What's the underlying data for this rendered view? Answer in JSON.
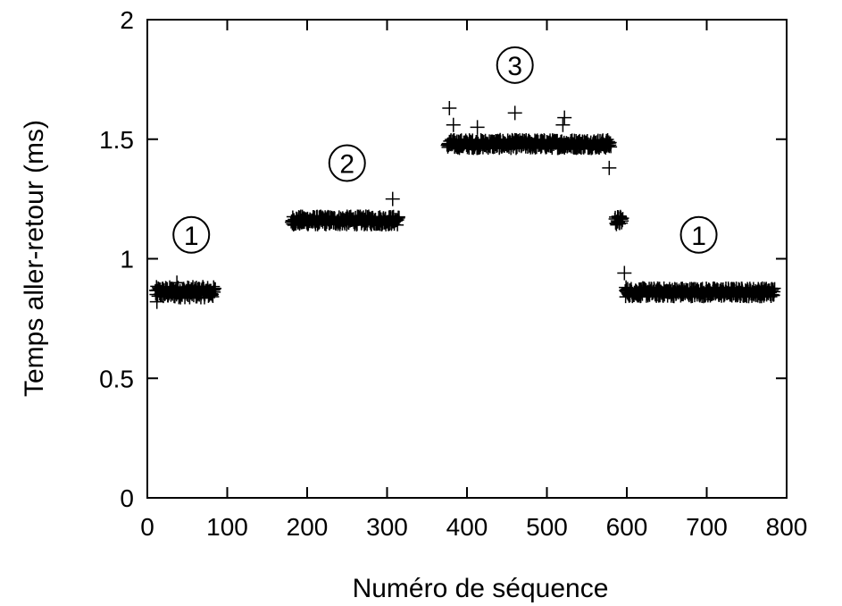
{
  "chart_data": {
    "type": "scatter",
    "title": "",
    "xlabel": "Numéro de séquence",
    "ylabel": "Temps aller-retour (ms)",
    "xlim": [
      0,
      800
    ],
    "ylim": [
      0,
      2
    ],
    "xticks": [
      0,
      100,
      200,
      300,
      400,
      500,
      600,
      700,
      800
    ],
    "yticks": [
      0,
      0.5,
      1,
      1.5,
      2
    ],
    "xtick_labels": [
      "0",
      "100",
      "200",
      "300",
      "400",
      "500",
      "600",
      "700",
      "800"
    ],
    "ytick_labels": [
      "0",
      "0.5",
      "1",
      "1.5",
      "2"
    ],
    "grid": false,
    "legend": "none",
    "marker": "plus",
    "color": "#000000",
    "segments": [
      {
        "x_start": 10,
        "x_end": 85,
        "y_base": 0.86,
        "y_spread": 0.025
      },
      {
        "x_start": 180,
        "x_end": 315,
        "y_base": 1.16,
        "y_spread": 0.02
      },
      {
        "x_start": 375,
        "x_end": 580,
        "y_base": 1.48,
        "y_spread": 0.02
      },
      {
        "x_start": 585,
        "x_end": 595,
        "y_base": 1.16,
        "y_spread": 0.02
      },
      {
        "x_start": 598,
        "x_end": 785,
        "y_base": 0.86,
        "y_spread": 0.02
      }
    ],
    "outliers": [
      {
        "x": 12,
        "y": 0.82
      },
      {
        "x": 37,
        "y": 0.9
      },
      {
        "x": 307,
        "y": 1.25
      },
      {
        "x": 378,
        "y": 1.63
      },
      {
        "x": 383,
        "y": 1.56
      },
      {
        "x": 413,
        "y": 1.55
      },
      {
        "x": 460,
        "y": 1.61
      },
      {
        "x": 522,
        "y": 1.59
      },
      {
        "x": 520,
        "y": 1.56
      },
      {
        "x": 578,
        "y": 1.38
      },
      {
        "x": 597,
        "y": 0.94
      },
      {
        "x": 599,
        "y": 0.88
      }
    ],
    "annotations": [
      {
        "label": "1",
        "x": 55,
        "y": 1.1
      },
      {
        "label": "2",
        "x": 250,
        "y": 1.4
      },
      {
        "label": "3",
        "x": 460,
        "y": 1.81
      },
      {
        "label": "1",
        "x": 690,
        "y": 1.1
      }
    ]
  }
}
